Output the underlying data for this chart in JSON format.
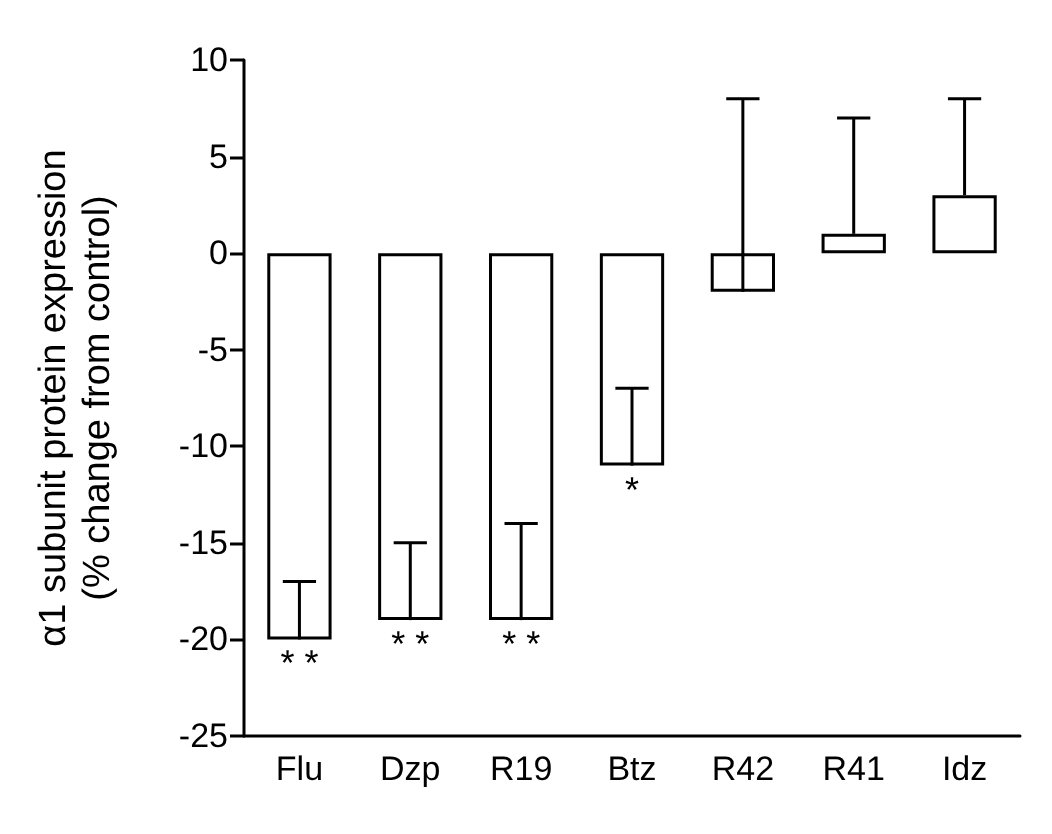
{
  "chart_data": {
    "type": "bar",
    "ylabel": "α1 subunit protein expression\n(% change from control)",
    "categories": [
      "Flu",
      "Dzp",
      "R19",
      "Btz",
      "R42",
      "R41",
      "Idz"
    ],
    "values": [
      -20,
      -19,
      -19,
      -11,
      -2,
      1,
      3
    ],
    "errors": [
      [
        -20,
        -17
      ],
      [
        -19,
        -15
      ],
      [
        -19,
        -14
      ],
      [
        -11,
        -7
      ],
      [
        -2,
        8
      ],
      [
        1,
        7
      ],
      [
        3,
        8
      ]
    ],
    "color": "#ffffff",
    "ylim": [
      -25,
      10
    ],
    "yticks": [
      -25,
      -20,
      -15,
      -10,
      -5,
      0,
      5,
      10
    ],
    "grid": false,
    "annotations": [
      {
        "text": "* *",
        "x": "Flu",
        "y": -20
      },
      {
        "text": "* *",
        "x": "Dzp",
        "y": -19
      },
      {
        "text": "* *",
        "x": "R19",
        "y": -19
      },
      {
        "text": "*",
        "x": "Btz",
        "y": -11
      }
    ]
  }
}
